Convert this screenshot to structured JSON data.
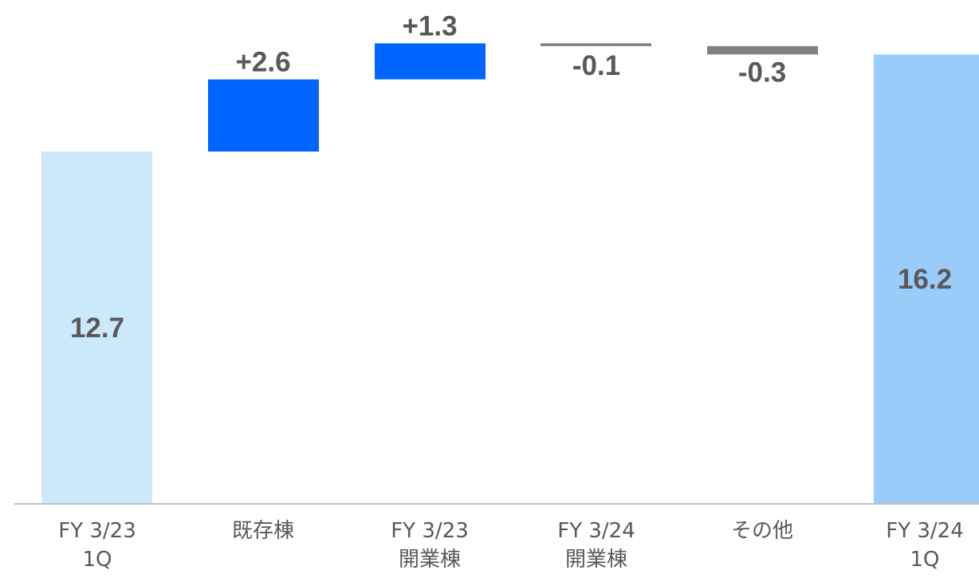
{
  "chart_data": {
    "type": "bar",
    "subtype": "waterfall",
    "categories": [
      [
        "FY 3/23",
        "1Q"
      ],
      [
        "既存棟"
      ],
      [
        "FY 3/23",
        "開業棟"
      ],
      [
        "FY 3/24",
        "開業棟"
      ],
      [
        "その他"
      ],
      [
        "FY 3/24",
        "1Q"
      ]
    ],
    "items": [
      {
        "kind": "total",
        "value": 12.7,
        "label": "12.7",
        "color": "#cce9fb"
      },
      {
        "kind": "delta",
        "value": 2.6,
        "label": "+2.6",
        "color": "#0066ff"
      },
      {
        "kind": "delta",
        "value": 1.3,
        "label": "+1.3",
        "color": "#0066ff"
      },
      {
        "kind": "delta",
        "value": -0.1,
        "label": "-0.1",
        "color": "#808080"
      },
      {
        "kind": "delta",
        "value": -0.3,
        "label": "-0.3",
        "color": "#808080"
      },
      {
        "kind": "total",
        "value": 16.2,
        "label": "16.2",
        "color": "#99ccf9"
      }
    ],
    "ylim": [
      0,
      17.3
    ],
    "grid": false,
    "legend": "none",
    "axis_color": "#bfbfbf",
    "label_color": "#595959"
  }
}
